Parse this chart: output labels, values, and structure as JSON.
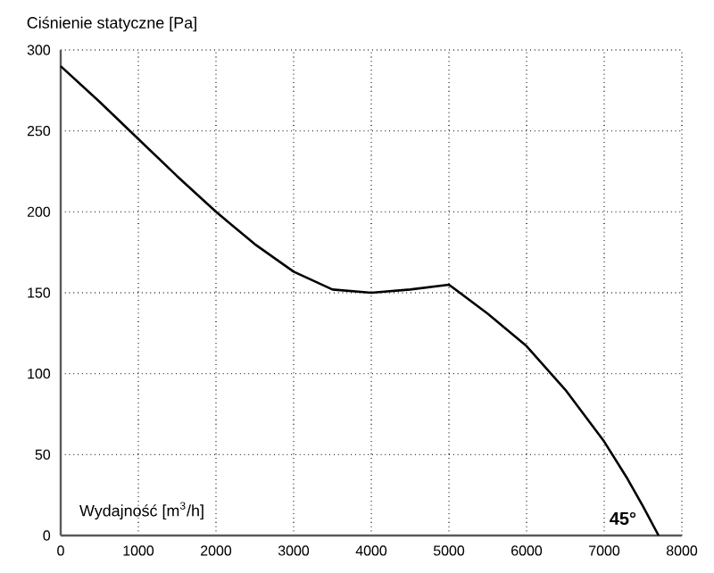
{
  "chart_data": {
    "type": "line",
    "ylabel": "Ciśnienie statyczne [Pa]",
    "xlabel": "Wydajność [m$^{3}$/h]",
    "x": [
      0,
      500,
      1000,
      1500,
      2000,
      2500,
      3000,
      3500,
      4000,
      4500,
      5000,
      5500,
      6000,
      6500,
      7000,
      7300,
      7500,
      7700
    ],
    "values": [
      290,
      268,
      245,
      222,
      200,
      180,
      163,
      152,
      150,
      152,
      155,
      137,
      117,
      90,
      58,
      35,
      18,
      0
    ],
    "color": "#000000",
    "xlim": [
      0,
      8000
    ],
    "xticks": [
      0,
      1000,
      2000,
      3000,
      4000,
      5000,
      6000,
      7000,
      8000
    ],
    "ylim": [
      0,
      300
    ],
    "yticks": [
      0,
      50,
      100,
      150,
      200,
      250,
      300
    ],
    "grid": true,
    "annotations": [
      "45°"
    ]
  }
}
